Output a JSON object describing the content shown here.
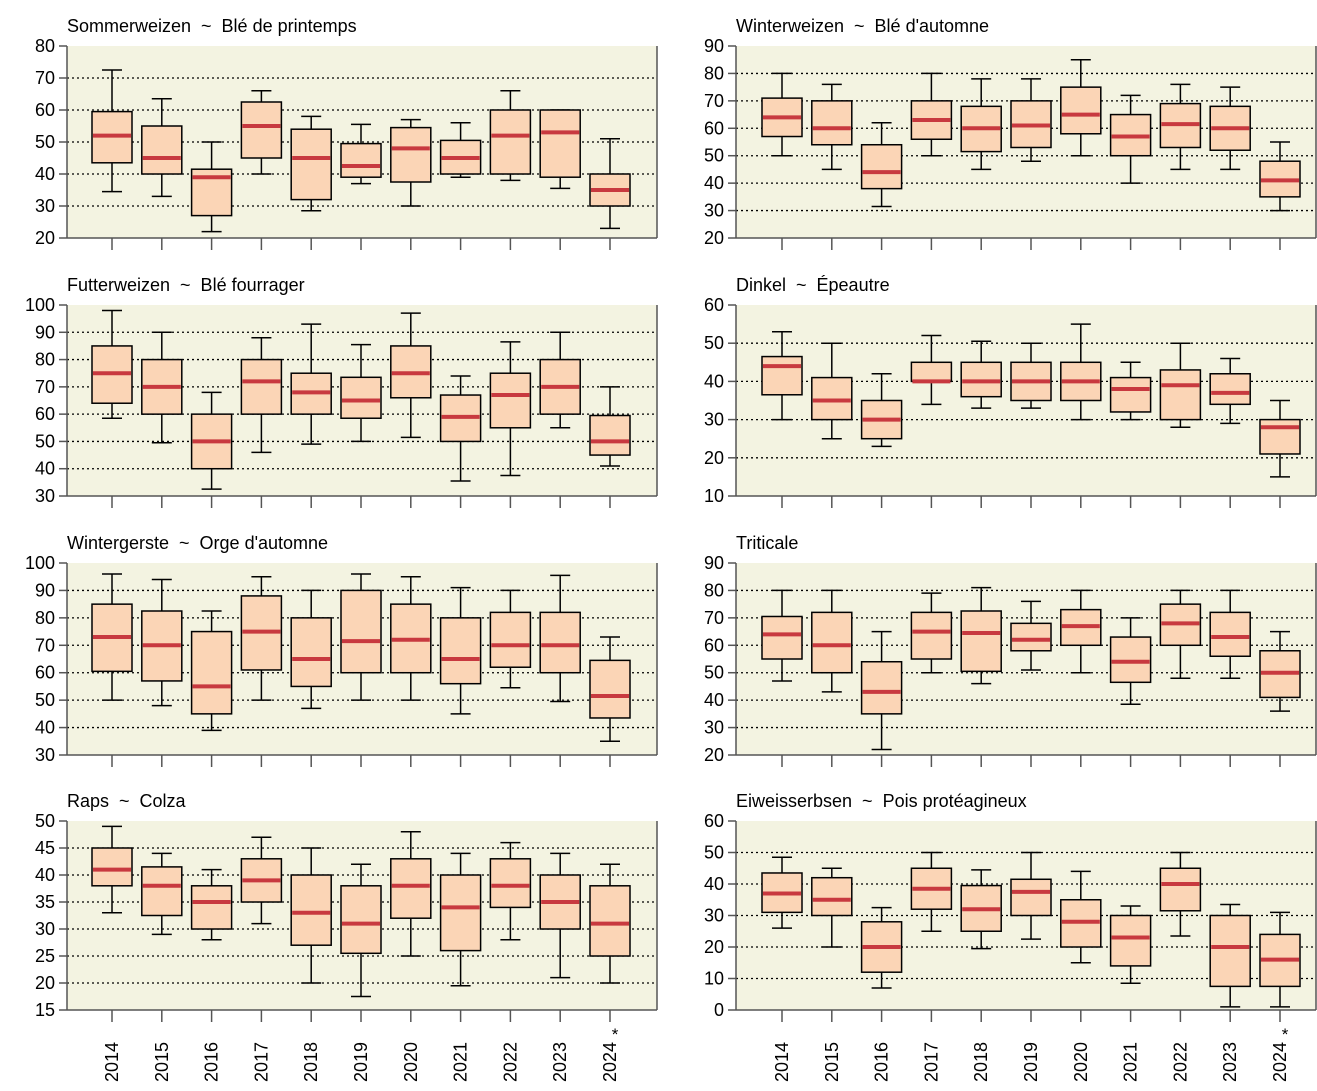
{
  "colors": {
    "plot_background": "#f3f3e1",
    "box_fill": "#fbd5b6",
    "median_line": "#c8393f",
    "axis": "#555555",
    "frame": "#000000"
  },
  "x_labels": [
    "2014",
    "2015",
    "2016",
    "2017",
    "2018",
    "2019",
    "2020",
    "2021",
    "2022",
    "2023",
    "2024"
  ],
  "x_label_annotation": {
    "index": 10,
    "text": "*"
  },
  "chart_data": [
    {
      "type": "box",
      "title": "Sommerweizen  ~  Blé de printemps",
      "ylim": [
        20,
        80
      ],
      "yticks": [
        20,
        30,
        40,
        50,
        60,
        70,
        80
      ],
      "gridlines": [
        30,
        40,
        50,
        60,
        70
      ],
      "categories": [
        "2014",
        "2015",
        "2016",
        "2017",
        "2018",
        "2019",
        "2020",
        "2021",
        "2022",
        "2023",
        "2024"
      ],
      "boxes": [
        {
          "min": 34.5,
          "q1": 43.5,
          "median": 52,
          "q3": 59.5,
          "max": 72.5
        },
        {
          "min": 33,
          "q1": 40,
          "median": 45,
          "q3": 55,
          "max": 63.5
        },
        {
          "min": 22,
          "q1": 27,
          "median": 39,
          "q3": 41.5,
          "max": 50
        },
        {
          "min": 40,
          "q1": 45,
          "median": 55,
          "q3": 62.5,
          "max": 66
        },
        {
          "min": 28.5,
          "q1": 32,
          "median": 45,
          "q3": 54,
          "max": 58
        },
        {
          "min": 37,
          "q1": 39,
          "median": 42.5,
          "q3": 49.5,
          "max": 55.5
        },
        {
          "min": 30,
          "q1": 37.5,
          "median": 48,
          "q3": 54.5,
          "max": 57
        },
        {
          "min": 39,
          "q1": 40,
          "median": 45,
          "q3": 50.5,
          "max": 56
        },
        {
          "min": 38,
          "q1": 40,
          "median": 52,
          "q3": 60,
          "max": 66
        },
        {
          "min": 35.5,
          "q1": 39,
          "median": 53,
          "q3": 60,
          "max": 60
        },
        {
          "min": 23,
          "q1": 30,
          "median": 35,
          "q3": 40,
          "max": 51
        }
      ]
    },
    {
      "type": "box",
      "title": "Winterweizen  ~  Blé d'automne",
      "ylim": [
        20,
        90
      ],
      "yticks": [
        20,
        30,
        40,
        50,
        60,
        70,
        80,
        90
      ],
      "gridlines": [
        30,
        40,
        50,
        60,
        70,
        80
      ],
      "categories": [
        "2014",
        "2015",
        "2016",
        "2017",
        "2018",
        "2019",
        "2020",
        "2021",
        "2022",
        "2023",
        "2024"
      ],
      "boxes": [
        {
          "min": 50,
          "q1": 57,
          "median": 64,
          "q3": 71,
          "max": 80
        },
        {
          "min": 45,
          "q1": 54,
          "median": 60,
          "q3": 70,
          "max": 76
        },
        {
          "min": 31.5,
          "q1": 38,
          "median": 44,
          "q3": 54,
          "max": 62
        },
        {
          "min": 50,
          "q1": 56,
          "median": 63,
          "q3": 70,
          "max": 80
        },
        {
          "min": 45,
          "q1": 51.5,
          "median": 60,
          "q3": 68,
          "max": 78
        },
        {
          "min": 48,
          "q1": 53,
          "median": 61,
          "q3": 70,
          "max": 78
        },
        {
          "min": 50,
          "q1": 58,
          "median": 65,
          "q3": 75,
          "max": 85
        },
        {
          "min": 40,
          "q1": 50,
          "median": 57,
          "q3": 65,
          "max": 72
        },
        {
          "min": 45,
          "q1": 53,
          "median": 61.5,
          "q3": 69,
          "max": 76
        },
        {
          "min": 45,
          "q1": 52,
          "median": 60,
          "q3": 68,
          "max": 75
        },
        {
          "min": 30,
          "q1": 35,
          "median": 41,
          "q3": 48,
          "max": 55
        }
      ]
    },
    {
      "type": "box",
      "title": "Futterweizen  ~  Blé fourrager",
      "ylim": [
        30,
        100
      ],
      "yticks": [
        30,
        40,
        50,
        60,
        70,
        80,
        90,
        100
      ],
      "gridlines": [
        40,
        50,
        60,
        70,
        80,
        90
      ],
      "categories": [
        "2014",
        "2015",
        "2016",
        "2017",
        "2018",
        "2019",
        "2020",
        "2021",
        "2022",
        "2023",
        "2024"
      ],
      "boxes": [
        {
          "min": 58.5,
          "q1": 64,
          "median": 75,
          "q3": 85,
          "max": 98
        },
        {
          "min": 49.5,
          "q1": 60,
          "median": 70,
          "q3": 80,
          "max": 90
        },
        {
          "min": 32.5,
          "q1": 40,
          "median": 50,
          "q3": 60,
          "max": 68
        },
        {
          "min": 46,
          "q1": 60,
          "median": 72,
          "q3": 80,
          "max": 88
        },
        {
          "min": 49,
          "q1": 60,
          "median": 68,
          "q3": 75,
          "max": 93
        },
        {
          "min": 50,
          "q1": 58.5,
          "median": 65,
          "q3": 73.5,
          "max": 85.5
        },
        {
          "min": 51.5,
          "q1": 66,
          "median": 75,
          "q3": 85,
          "max": 97
        },
        {
          "min": 35.5,
          "q1": 50,
          "median": 59,
          "q3": 67,
          "max": 74
        },
        {
          "min": 37.5,
          "q1": 55,
          "median": 67,
          "q3": 75,
          "max": 86.5
        },
        {
          "min": 55,
          "q1": 60,
          "median": 70,
          "q3": 80,
          "max": 90
        },
        {
          "min": 41,
          "q1": 45,
          "median": 50,
          "q3": 59.5,
          "max": 70
        }
      ]
    },
    {
      "type": "box",
      "title": "Dinkel  ~  Épeautre",
      "ylim": [
        10,
        60
      ],
      "yticks": [
        10,
        20,
        30,
        40,
        50,
        60
      ],
      "gridlines": [
        20,
        30,
        40,
        50
      ],
      "categories": [
        "2014",
        "2015",
        "2016",
        "2017",
        "2018",
        "2019",
        "2020",
        "2021",
        "2022",
        "2023",
        "2024"
      ],
      "boxes": [
        {
          "min": 30,
          "q1": 36.5,
          "median": 44,
          "q3": 46.5,
          "max": 53
        },
        {
          "min": 25,
          "q1": 30,
          "median": 35,
          "q3": 41,
          "max": 50
        },
        {
          "min": 23,
          "q1": 25,
          "median": 30,
          "q3": 35,
          "max": 42
        },
        {
          "min": 34,
          "q1": 40,
          "median": 40,
          "q3": 45,
          "max": 52
        },
        {
          "min": 33,
          "q1": 36,
          "median": 40,
          "q3": 45,
          "max": 50.5
        },
        {
          "min": 33,
          "q1": 35,
          "median": 40,
          "q3": 45,
          "max": 50
        },
        {
          "min": 30,
          "q1": 35,
          "median": 40,
          "q3": 45,
          "max": 55
        },
        {
          "min": 30,
          "q1": 32,
          "median": 38,
          "q3": 41,
          "max": 45
        },
        {
          "min": 28,
          "q1": 30,
          "median": 39,
          "q3": 43,
          "max": 50
        },
        {
          "min": 29,
          "q1": 34,
          "median": 37,
          "q3": 42,
          "max": 46
        },
        {
          "min": 15,
          "q1": 21,
          "median": 28,
          "q3": 30,
          "max": 35
        }
      ]
    },
    {
      "type": "box",
      "title": "Wintergerste  ~  Orge d'automne",
      "ylim": [
        30,
        100
      ],
      "yticks": [
        30,
        40,
        50,
        60,
        70,
        80,
        90,
        100
      ],
      "gridlines": [
        40,
        50,
        60,
        70,
        80,
        90
      ],
      "categories": [
        "2014",
        "2015",
        "2016",
        "2017",
        "2018",
        "2019",
        "2020",
        "2021",
        "2022",
        "2023",
        "2024"
      ],
      "boxes": [
        {
          "min": 50,
          "q1": 60.5,
          "median": 73,
          "q3": 85,
          "max": 96
        },
        {
          "min": 48,
          "q1": 57,
          "median": 70,
          "q3": 82.5,
          "max": 94
        },
        {
          "min": 39,
          "q1": 45,
          "median": 55,
          "q3": 75,
          "max": 82.5
        },
        {
          "min": 50,
          "q1": 61,
          "median": 75,
          "q3": 88,
          "max": 95
        },
        {
          "min": 47,
          "q1": 55,
          "median": 65,
          "q3": 80,
          "max": 90
        },
        {
          "min": 50,
          "q1": 60,
          "median": 71.5,
          "q3": 90,
          "max": 96
        },
        {
          "min": 50,
          "q1": 60,
          "median": 72,
          "q3": 85,
          "max": 95
        },
        {
          "min": 45,
          "q1": 56,
          "median": 65,
          "q3": 80,
          "max": 91
        },
        {
          "min": 54.5,
          "q1": 62,
          "median": 70,
          "q3": 82,
          "max": 90
        },
        {
          "min": 49.5,
          "q1": 60,
          "median": 70,
          "q3": 82,
          "max": 95.5
        },
        {
          "min": 35,
          "q1": 43.5,
          "median": 51.5,
          "q3": 64.5,
          "max": 73
        }
      ]
    },
    {
      "type": "box",
      "title": "Triticale",
      "ylim": [
        20,
        90
      ],
      "yticks": [
        20,
        30,
        40,
        50,
        60,
        70,
        80,
        90
      ],
      "gridlines": [
        30,
        40,
        50,
        60,
        70,
        80
      ],
      "categories": [
        "2014",
        "2015",
        "2016",
        "2017",
        "2018",
        "2019",
        "2020",
        "2021",
        "2022",
        "2023",
        "2024"
      ],
      "boxes": [
        {
          "min": 47,
          "q1": 55,
          "median": 64,
          "q3": 70.5,
          "max": 80
        },
        {
          "min": 43,
          "q1": 50,
          "median": 60,
          "q3": 72,
          "max": 80
        },
        {
          "min": 22,
          "q1": 35,
          "median": 43,
          "q3": 54,
          "max": 65
        },
        {
          "min": 50,
          "q1": 55,
          "median": 65,
          "q3": 72,
          "max": 79
        },
        {
          "min": 46,
          "q1": 50.5,
          "median": 64.5,
          "q3": 72.5,
          "max": 81
        },
        {
          "min": 51,
          "q1": 58,
          "median": 62,
          "q3": 68,
          "max": 76
        },
        {
          "min": 50,
          "q1": 60,
          "median": 67,
          "q3": 73,
          "max": 80
        },
        {
          "min": 38.5,
          "q1": 46.5,
          "median": 54,
          "q3": 63,
          "max": 70
        },
        {
          "min": 48,
          "q1": 60,
          "median": 68,
          "q3": 75,
          "max": 80
        },
        {
          "min": 48,
          "q1": 56,
          "median": 63,
          "q3": 72,
          "max": 80
        },
        {
          "min": 36,
          "q1": 41,
          "median": 50,
          "q3": 58,
          "max": 65
        }
      ]
    },
    {
      "type": "box",
      "title": "Raps  ~  Colza",
      "ylim": [
        15,
        50
      ],
      "yticks": [
        15,
        20,
        25,
        30,
        35,
        40,
        45,
        50
      ],
      "gridlines": [
        20,
        25,
        30,
        35,
        40,
        45
      ],
      "categories": [
        "2014",
        "2015",
        "2016",
        "2017",
        "2018",
        "2019",
        "2020",
        "2021",
        "2022",
        "2023",
        "2024"
      ],
      "boxes": [
        {
          "min": 33,
          "q1": 38,
          "median": 41,
          "q3": 45,
          "max": 49
        },
        {
          "min": 29,
          "q1": 32.5,
          "median": 38,
          "q3": 41.5,
          "max": 44
        },
        {
          "min": 28,
          "q1": 30,
          "median": 35,
          "q3": 38,
          "max": 41
        },
        {
          "min": 31,
          "q1": 35,
          "median": 39,
          "q3": 43,
          "max": 47
        },
        {
          "min": 20,
          "q1": 27,
          "median": 33,
          "q3": 40,
          "max": 45
        },
        {
          "min": 17.5,
          "q1": 25.5,
          "median": 31,
          "q3": 38,
          "max": 42
        },
        {
          "min": 25,
          "q1": 32,
          "median": 38,
          "q3": 43,
          "max": 48
        },
        {
          "min": 19.5,
          "q1": 26,
          "median": 34,
          "q3": 40,
          "max": 44
        },
        {
          "min": 28,
          "q1": 34,
          "median": 38,
          "q3": 43,
          "max": 46
        },
        {
          "min": 21,
          "q1": 30,
          "median": 35,
          "q3": 40,
          "max": 44
        },
        {
          "min": 20,
          "q1": 25,
          "median": 31,
          "q3": 38,
          "max": 42
        }
      ]
    },
    {
      "type": "box",
      "title": "Eiweisserbsen  ~  Pois protéagineux",
      "ylim": [
        0,
        60
      ],
      "yticks": [
        0,
        10,
        20,
        30,
        40,
        50,
        60
      ],
      "gridlines": [
        10,
        20,
        30,
        40,
        50
      ],
      "categories": [
        "2014",
        "2015",
        "2016",
        "2017",
        "2018",
        "2019",
        "2020",
        "2021",
        "2022",
        "2023",
        "2024"
      ],
      "boxes": [
        {
          "min": 26,
          "q1": 31,
          "median": 37,
          "q3": 43.5,
          "max": 48.5
        },
        {
          "min": 20,
          "q1": 30,
          "median": 35,
          "q3": 42,
          "max": 45
        },
        {
          "min": 7,
          "q1": 12,
          "median": 20,
          "q3": 28,
          "max": 32.5
        },
        {
          "min": 25,
          "q1": 32,
          "median": 38.5,
          "q3": 45,
          "max": 50
        },
        {
          "min": 19.5,
          "q1": 25,
          "median": 32,
          "q3": 39.5,
          "max": 44.5
        },
        {
          "min": 22.5,
          "q1": 30,
          "median": 37.5,
          "q3": 41.5,
          "max": 50
        },
        {
          "min": 15,
          "q1": 20,
          "median": 28,
          "q3": 35,
          "max": 44
        },
        {
          "min": 8.5,
          "q1": 14,
          "median": 23,
          "q3": 30,
          "max": 33
        },
        {
          "min": 23.5,
          "q1": 31.5,
          "median": 40,
          "q3": 45,
          "max": 50
        },
        {
          "min": 1,
          "q1": 7.5,
          "median": 20,
          "q3": 30,
          "max": 33.5
        },
        {
          "min": 1,
          "q1": 7.5,
          "median": 16,
          "q3": 24,
          "max": 31
        }
      ]
    }
  ]
}
